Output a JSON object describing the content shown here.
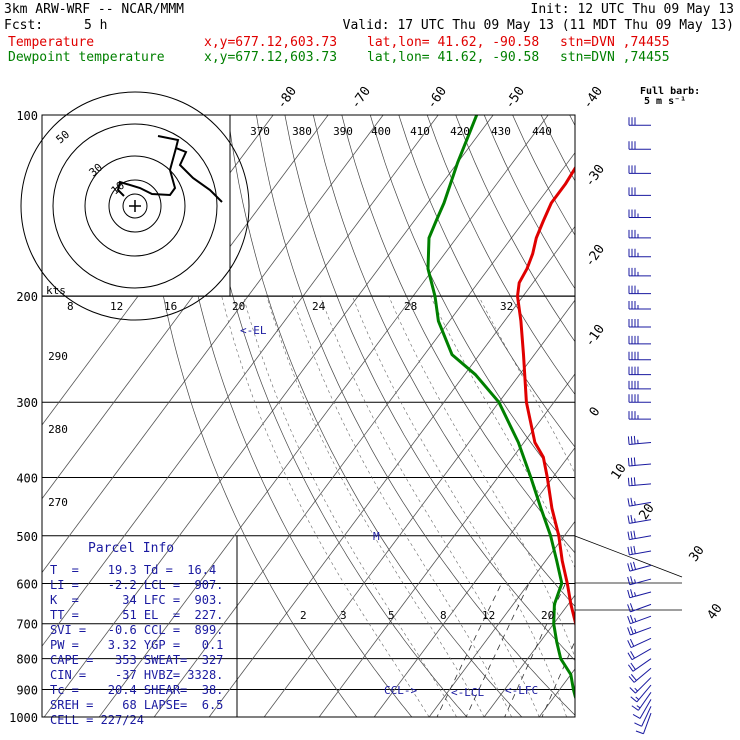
{
  "header": {
    "model": "3km ARW-WRF -- NCAR/MMM",
    "init": "Init: 12 UTC Thu 09 May 13",
    "fcst_label": "Fcst:",
    "fcst_value": "5 h",
    "valid": "Valid: 17 UTC Thu 09 May 13 (11 MDT Thu 09 May 13)",
    "temp_label": "Temperature",
    "dew_label": "Dewpoint temperature",
    "xy": "x,y=677.12,603.73",
    "latlon": "lat,lon= 41.62, -90.58",
    "stn": "stn=DVN ,74455"
  },
  "colors": {
    "temperature": "#e00000",
    "dewpoint": "#008000",
    "barbs": "#1a1aa0",
    "grid": "#000000"
  },
  "wind_key": {
    "title": "Full barb:",
    "value": "5 m s⁻¹"
  },
  "hodograph": {
    "unit": "kts",
    "ring_labels": [
      "50",
      "30",
      "10"
    ],
    "speed_ticks": [
      "8",
      "12",
      "16",
      "20",
      "24",
      "28",
      "32"
    ]
  },
  "parcel": {
    "title": "Parcel Info",
    "rows": [
      "T  =    19.3 Td =  16.4",
      "LI =    -2.2 LCL =  907.",
      "K  =      34 LFC =  903.",
      "TT =      51 EL  =  227.",
      "SVI =   -0.6 CCL =  899.",
      "PW =    3.32 YGP =   0.1",
      "CAPE =   353 SWEAT=  327",
      "CIN =    -37 HVBZ= 3328.",
      "Tc =    20.4 SHEAR=  38.",
      "SREH =    68 LAPSE=  6.5",
      "CELL = 227/24"
    ]
  },
  "markers": {
    "el": "<-EL",
    "m": "M",
    "ccl": "CCL->",
    "lcl": "<-LCL",
    "lfc": "<-LFC"
  },
  "chart_data": {
    "type": "line",
    "title": "",
    "y_axis": {
      "label": "",
      "scale": "log-pressure",
      "ticks": [
        100,
        200,
        300,
        400,
        500,
        600,
        700,
        800,
        900,
        1000
      ],
      "range": [
        1000,
        100
      ]
    },
    "isotherm_labels": [
      "-80",
      "-70",
      "-60",
      "-50",
      "-40",
      "-30",
      "-20",
      "-10",
      "0",
      "10",
      "20",
      "30",
      "40"
    ],
    "theta_labels": [
      "370",
      "380",
      "390",
      "400",
      "410",
      "420",
      "430",
      "440",
      "290",
      "280",
      "270"
    ],
    "mixing_ratio_labels": [
      "2",
      "3",
      "5",
      "8",
      "12",
      "20"
    ],
    "series": [
      {
        "name": "Temperature",
        "pressure": [
          980,
          950,
          925,
          900,
          850,
          800,
          750,
          700,
          650,
          600,
          550,
          500,
          450,
          400,
          370,
          350,
          300,
          250,
          220,
          200,
          190,
          180,
          170,
          160,
          150,
          140,
          130,
          120,
          110,
          100
        ],
        "values": [
          19.3,
          18.5,
          16.8,
          15.0,
          12.0,
          9.5,
          7.0,
          4.0,
          0.5,
          -3.0,
          -7.0,
          -11.0,
          -16.0,
          -21.0,
          -24.5,
          -28.0,
          -35.0,
          -42.0,
          -47.0,
          -51.0,
          -52.5,
          -53.0,
          -54.0,
          -55.5,
          -56.5,
          -57.5,
          -57.5,
          -58.0,
          -58.5,
          -59.0
        ]
      },
      {
        "name": "Dewpoint temperature",
        "pressure": [
          980,
          950,
          925,
          900,
          850,
          800,
          750,
          700,
          650,
          600,
          550,
          500,
          450,
          400,
          350,
          300,
          270,
          250,
          220,
          200,
          180,
          160,
          150,
          140,
          120,
          100
        ],
        "values": [
          16.4,
          15.2,
          13.8,
          12.5,
          10.0,
          6.0,
          3.0,
          0.0,
          -2.5,
          -4.0,
          -8.0,
          -12.5,
          -18.0,
          -24.0,
          -31.0,
          -40.0,
          -48.0,
          -55.0,
          -62.0,
          -66.0,
          -71.0,
          -75.0,
          -76.0,
          -77.0,
          -80.0,
          -83.0
        ]
      }
    ],
    "wind_barbs": {
      "pressure": [
        985,
        960,
        935,
        910,
        885,
        860,
        830,
        800,
        770,
        740,
        710,
        680,
        650,
        620,
        590,
        560,
        530,
        500,
        470,
        440,
        410,
        380,
        350,
        320,
        300,
        285,
        270,
        255,
        240,
        225,
        210,
        198,
        185,
        172,
        160,
        148,
        136,
        125,
        114,
        104
      ],
      "speed_kt": [
        10,
        12,
        14,
        15,
        16,
        18,
        20,
        22,
        22,
        24,
        25,
        25,
        24,
        25,
        27,
        30,
        30,
        30,
        28,
        28,
        30,
        32,
        35,
        38,
        40,
        42,
        42,
        42,
        40,
        40,
        38,
        38,
        36,
        36,
        35,
        35,
        32,
        30,
        30,
        30
      ],
      "dir_deg": [
        200,
        205,
        210,
        215,
        220,
        225,
        230,
        235,
        240,
        245,
        250,
        250,
        250,
        255,
        255,
        255,
        260,
        260,
        260,
        260,
        265,
        265,
        265,
        270,
        270,
        270,
        270,
        270,
        270,
        270,
        270,
        270,
        270,
        270,
        270,
        270,
        270,
        270,
        270,
        270
      ]
    }
  }
}
